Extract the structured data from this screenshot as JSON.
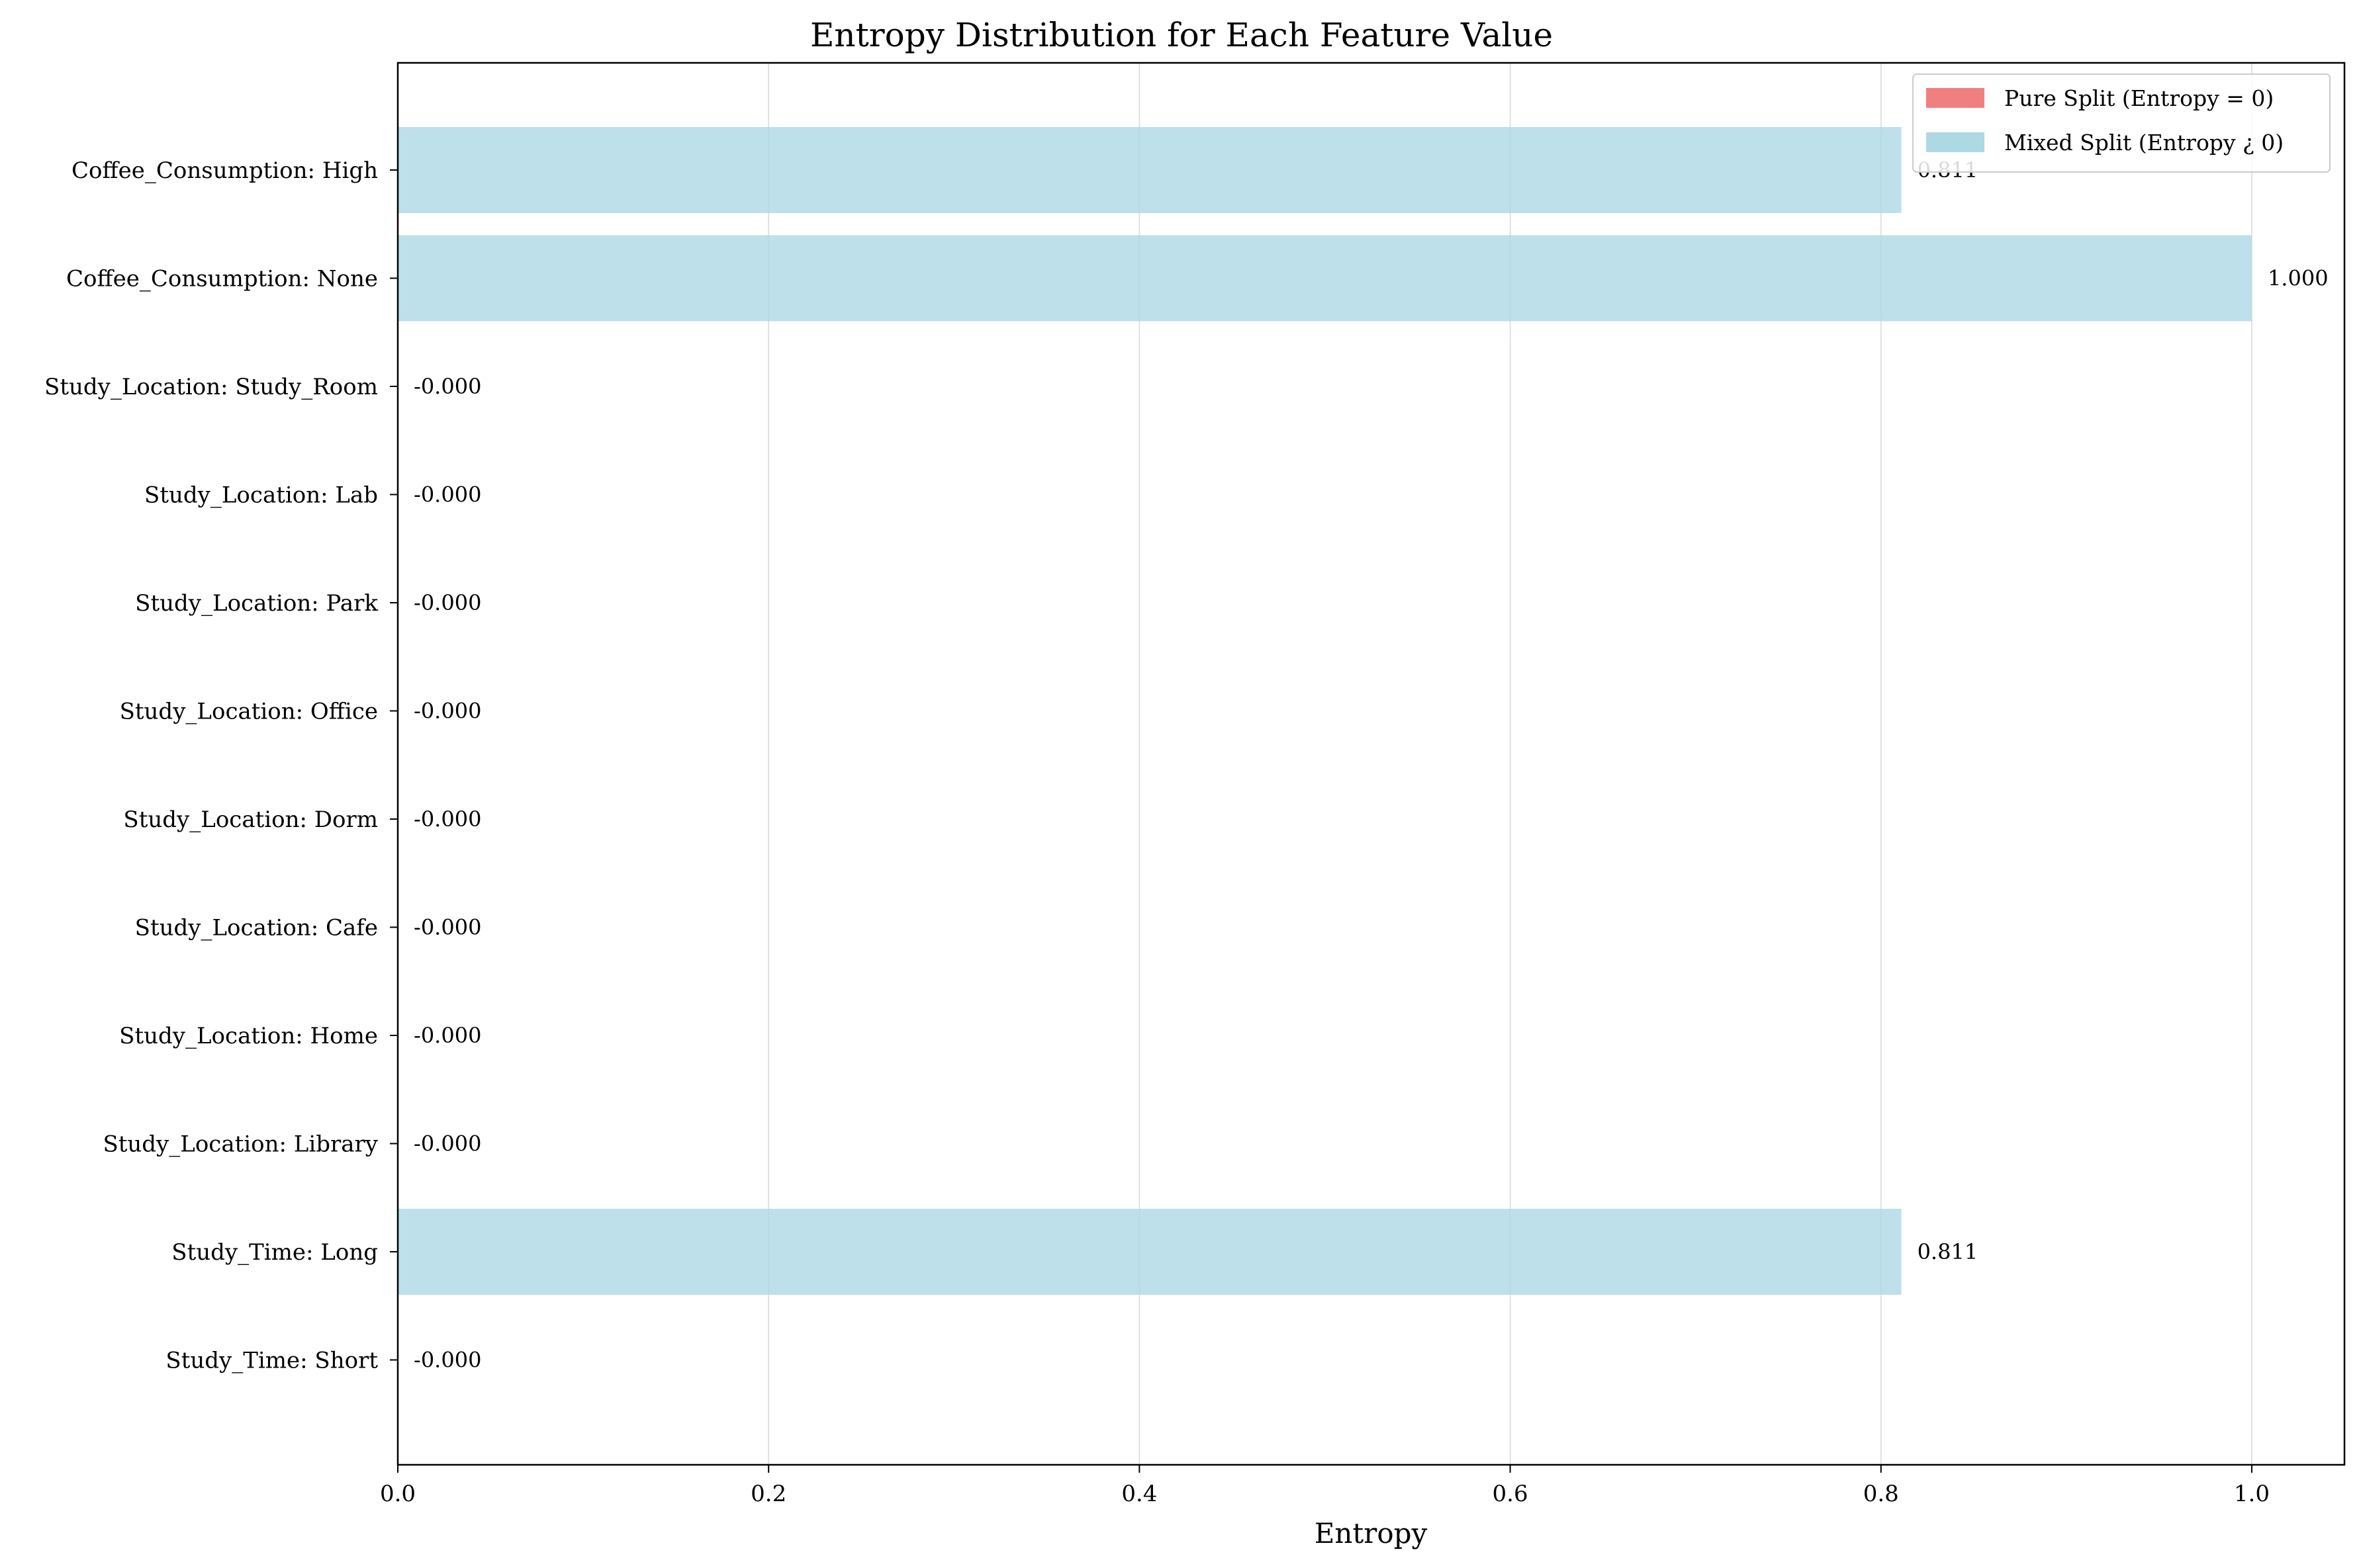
{
  "chart_data": {
    "type": "bar",
    "orientation": "horizontal",
    "title": "Entropy Distribution for Each Feature Value",
    "xlabel": "Entropy",
    "ylabel": "",
    "xlim": [
      0,
      1.05
    ],
    "x_ticks": [
      "0.0",
      "0.2",
      "0.4",
      "0.6",
      "0.8",
      "1.0"
    ],
    "x_tick_values": [
      0,
      0.2,
      0.4,
      0.6,
      0.8,
      1.0
    ],
    "grid": "vertical",
    "legend_placement": "top-right",
    "colors": {
      "pure": "#f08080",
      "mixed": "#add8e6"
    },
    "legend": [
      {
        "label": "Pure Split (Entropy = 0)",
        "color": "#f08080"
      },
      {
        "label": "Mixed Split (Entropy ¿ 0)",
        "color": "#add8e6"
      }
    ],
    "categories": [
      "Coffee_Consumption: High",
      "Coffee_Consumption: None",
      "Study_Location: Study_Room",
      "Study_Location: Lab",
      "Study_Location: Park",
      "Study_Location: Office",
      "Study_Location: Dorm",
      "Study_Location: Cafe",
      "Study_Location: Home",
      "Study_Location: Library",
      "Study_Time: Long",
      "Study_Time: Short"
    ],
    "values": [
      0.811,
      1.0,
      0,
      0,
      0,
      0,
      0,
      0,
      0,
      0,
      0.811,
      0
    ],
    "value_labels": [
      "0.811",
      "1.000",
      "-0.000",
      "-0.000",
      "-0.000",
      "-0.000",
      "-0.000",
      "-0.000",
      "-0.000",
      "-0.000",
      "0.811",
      "-0.000"
    ]
  }
}
